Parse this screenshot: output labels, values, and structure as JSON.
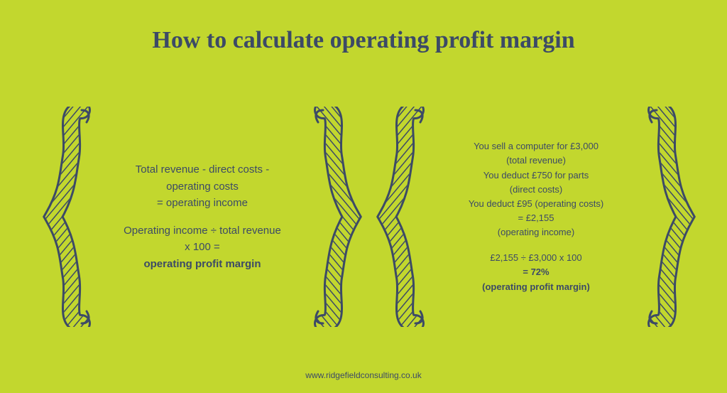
{
  "type": "infographic",
  "background_color": "#c2d72e",
  "text_color": "#3c4a66",
  "brace_stroke_color": "#3c4a66",
  "brace_stroke_width": 3,
  "title": {
    "text": "How to calculate operating profit margin",
    "fontsize": 34,
    "font_family": "Georgia, serif",
    "font_weight": "bold"
  },
  "left_panel": {
    "fontsize": 15,
    "lines": [
      {
        "text": "Total revenue - direct costs -",
        "bold": false
      },
      {
        "text": "operating costs",
        "bold": false
      },
      {
        "text": "= operating income",
        "bold": false
      }
    ],
    "lines2": [
      {
        "text": "Operating income ÷ total revenue",
        "bold": false
      },
      {
        "text": "x 100 =",
        "bold": false
      },
      {
        "text": "operating profit margin",
        "bold": true
      }
    ]
  },
  "right_panel": {
    "fontsize": 13,
    "lines": [
      {
        "text": "You sell a computer for £3,000",
        "bold": false
      },
      {
        "text": "(total revenue)",
        "bold": false
      },
      {
        "text": "You deduct £750 for parts",
        "bold": false
      },
      {
        "text": "(direct costs)",
        "bold": false
      },
      {
        "text": "You deduct £95 (operating costs)",
        "bold": false
      },
      {
        "text": "= £2,155",
        "bold": false
      },
      {
        "text": "(operating income)",
        "bold": false
      }
    ],
    "lines2": [
      {
        "text": "£2,155 ÷ £3,000 x 100",
        "bold": false
      },
      {
        "text": "= 72%",
        "bold": true
      },
      {
        "text": "(operating profit margin)",
        "bold": true
      }
    ]
  },
  "footer": {
    "text": "www.ridgefieldconsulting.co.uk",
    "fontsize": 12
  }
}
